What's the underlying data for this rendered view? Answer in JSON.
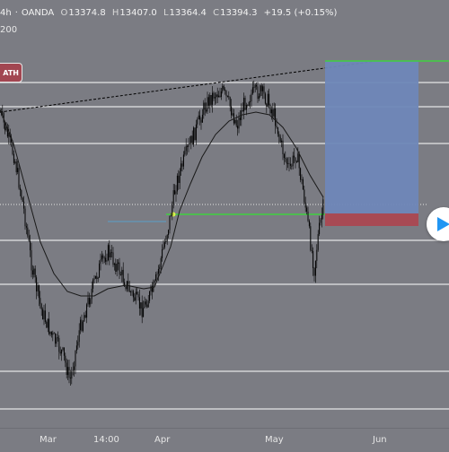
{
  "legend": {
    "timeframe": "4h",
    "separator": "·",
    "source": "OANDA",
    "open_label": "O",
    "open": "13374.8",
    "high_label": "H",
    "high": "13407.0",
    "low_label": "L",
    "low": "13364.4",
    "close_label": "C",
    "close": "13394.3",
    "change": "+19.5 (+0.15%)"
  },
  "indicator": {
    "ma_period": "200"
  },
  "badge": {
    "label": "ATH"
  },
  "time_axis": {
    "ticks": [
      "Mar",
      "14:00",
      "Apr",
      "May",
      "Jun"
    ]
  },
  "colors": {
    "background": "#7b7c83",
    "candles": "#000000",
    "horizontal_levels": "#ffffff",
    "trendline": "#000000",
    "position_target": "#6f87b8",
    "position_stop": "#a84a54",
    "position_entry_line": "#3fd13f",
    "moving_average": "#1a1a1a",
    "play_button_icon": "#2196f3"
  },
  "icons": {
    "play": "play-icon"
  },
  "chart_data": {
    "type": "candlestick",
    "symbol_source": "OANDA",
    "timeframe": "4h",
    "x": [
      "Mar",
      "14:00",
      "Apr",
      "May",
      "Jun"
    ],
    "indicators": [
      {
        "type": "moving-average",
        "period": 200
      }
    ],
    "drawings": [
      "horizontal-levels",
      "ascending-trendline-dashed",
      "long-position-box"
    ],
    "last_close": 13394.3
  }
}
